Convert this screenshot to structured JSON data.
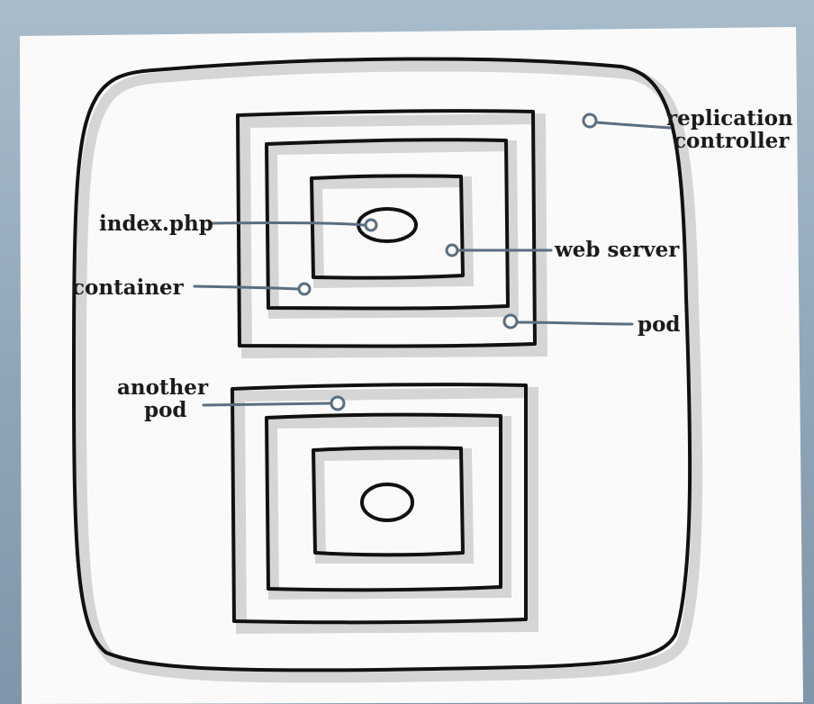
{
  "labels": {
    "replication_controller_line1": "replication",
    "replication_controller_line2": "controller",
    "index_php": "index.php",
    "web_server": "web server",
    "container": "container",
    "pod": "pod",
    "another_pod_line1": "another",
    "another_pod_line2": "pod"
  },
  "colors": {
    "stroke": "#111111",
    "shadow": "#c9c9c9",
    "leader_line": "#5a6e80",
    "paper": "#fafafa",
    "background": "#93a8ba"
  }
}
